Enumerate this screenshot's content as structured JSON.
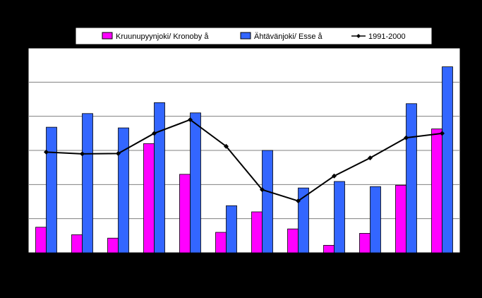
{
  "chart_data": {
    "type": "bar",
    "categories": [
      "",
      "",
      "",
      "",
      "",
      "",
      "",
      "",
      "",
      "",
      "",
      ""
    ],
    "ylim": [
      0,
      6
    ],
    "grid": true,
    "legend_position": "top",
    "series": [
      {
        "name": "Kruunupyynjoki/ Kronoby å",
        "kind": "bar",
        "color": "#FF00FF",
        "values": [
          0.75,
          0.53,
          0.43,
          3.2,
          2.3,
          0.6,
          1.2,
          0.7,
          0.22,
          0.57,
          1.98,
          3.63
        ]
      },
      {
        "name": "Ähtävänjoki/ Esse å",
        "kind": "bar",
        "color": "#3366FF",
        "values": [
          3.68,
          4.08,
          3.66,
          4.4,
          4.1,
          1.38,
          3.0,
          1.9,
          2.09,
          1.94,
          4.37,
          5.45
        ]
      },
      {
        "name": "1991-2000",
        "kind": "line",
        "color": "#000000",
        "values": [
          2.95,
          2.9,
          2.91,
          3.5,
          3.9,
          3.12,
          1.85,
          1.52,
          2.25,
          2.78,
          3.37,
          3.5
        ]
      }
    ]
  }
}
